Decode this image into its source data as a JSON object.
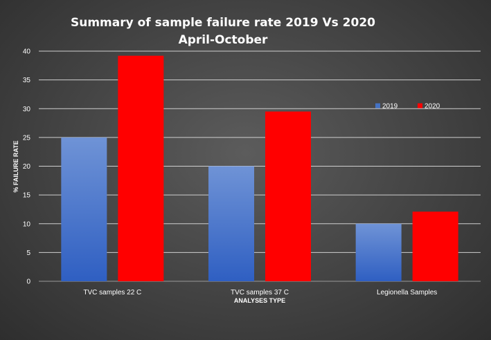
{
  "chart_data": {
    "type": "bar",
    "title": "Summary  of sample  failure  rate 2019 Vs 2020",
    "subtitle": "April-October",
    "xlabel": "ANALYSES TYPE",
    "ylabel": "% FAILURE RATE",
    "ylim": [
      0,
      40
    ],
    "yticks": [
      0,
      5,
      10,
      15,
      20,
      25,
      30,
      35,
      40
    ],
    "categories": [
      "TVC samples 22 C",
      "TVC samples 37 C",
      "Legionella Samples"
    ],
    "series": [
      {
        "name": "2019",
        "values": [
          25,
          20,
          10
        ],
        "color": "#4472c4"
      },
      {
        "name": "2020",
        "values": [
          39.2,
          29.5,
          12.1
        ],
        "color": "#ff0000"
      }
    ],
    "grid": true,
    "legend_position": "top-right"
  }
}
